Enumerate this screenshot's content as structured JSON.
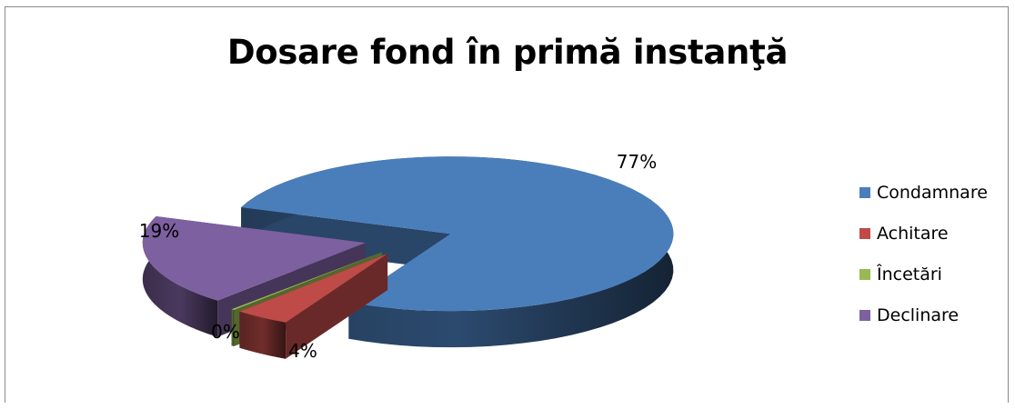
{
  "chart_data": {
    "type": "pie",
    "title": "Dosare fond în primă instanţă",
    "categories": [
      "Condamnare",
      "Achitare",
      "Încetări",
      "Declinare"
    ],
    "values": [
      77,
      4,
      0,
      19
    ],
    "labels": [
      "77%",
      "4%",
      "0%",
      "19%"
    ],
    "colors": [
      "#4a7ebb",
      "#be4b48",
      "#98b954",
      "#7d60a0"
    ],
    "legend_position": "right",
    "style": "3d-exploded"
  }
}
